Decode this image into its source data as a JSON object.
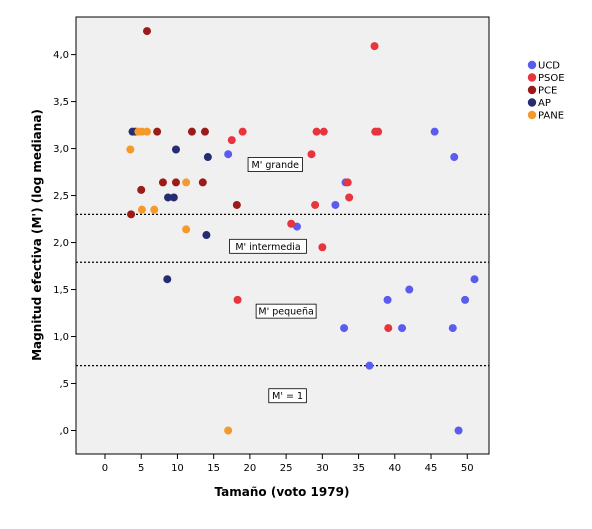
{
  "chart_data": {
    "type": "scatter",
    "title": "",
    "xlabel": "Tamaño (voto 1979)",
    "ylabel": "Magnitud efectiva (M') (log mediana)",
    "xlim": [
      -4,
      53
    ],
    "ylim": [
      -0.25,
      4.4
    ],
    "x_ticks": [
      0,
      5,
      10,
      15,
      20,
      25,
      30,
      35,
      40,
      45,
      50
    ],
    "x_tick_labels": [
      "0",
      "5",
      "10",
      "15",
      "20",
      "25",
      "30",
      "35",
      "40",
      "45",
      "50"
    ],
    "y_ticks": [
      0,
      0.5,
      1.0,
      1.5,
      2.0,
      2.5,
      3.0,
      3.5,
      4.0
    ],
    "y_tick_labels": [
      ",0",
      ",5",
      "1,0",
      "1,5",
      "2,0",
      "2,5",
      "3,0",
      "3,5",
      "4,0"
    ],
    "grid": false,
    "legend_position": "top-right",
    "series": [
      {
        "name": "UCD",
        "color": "#5b5bf0",
        "points": [
          [
            17,
            2.94
          ],
          [
            26.5,
            2.17
          ],
          [
            31.8,
            2.4
          ],
          [
            33.2,
            2.64
          ],
          [
            33,
            1.09
          ],
          [
            36.5,
            0.69
          ],
          [
            39,
            1.39
          ],
          [
            41,
            1.09
          ],
          [
            42,
            1.5
          ],
          [
            45.5,
            3.18
          ],
          [
            48.2,
            2.91
          ],
          [
            48,
            1.09
          ],
          [
            49.7,
            1.39
          ],
          [
            51,
            1.61
          ],
          [
            48.8,
            0
          ]
        ]
      },
      {
        "name": "PSOE",
        "color": "#e8343c",
        "points": [
          [
            17.5,
            3.09
          ],
          [
            18.3,
            1.39
          ],
          [
            19,
            3.18
          ],
          [
            25.7,
            2.2
          ],
          [
            28.5,
            2.94
          ],
          [
            29,
            2.4
          ],
          [
            29.2,
            3.18
          ],
          [
            30.2,
            3.18
          ],
          [
            30,
            1.95
          ],
          [
            33.5,
            2.64
          ],
          [
            33.7,
            2.48
          ],
          [
            37.2,
            4.09
          ],
          [
            37.3,
            3.18
          ],
          [
            37.7,
            3.18
          ],
          [
            39.1,
            1.09
          ]
        ]
      },
      {
        "name": "PCE",
        "color": "#9b1a1a",
        "points": [
          [
            5.8,
            4.25
          ],
          [
            4.2,
            3.18
          ],
          [
            7.2,
            3.18
          ],
          [
            12,
            3.18
          ],
          [
            13.8,
            3.18
          ],
          [
            5,
            2.56
          ],
          [
            8,
            2.64
          ],
          [
            9.8,
            2.64
          ],
          [
            13.5,
            2.64
          ],
          [
            18.2,
            2.4
          ],
          [
            3.6,
            2.3
          ]
        ]
      },
      {
        "name": "AP",
        "color": "#252c70",
        "points": [
          [
            3.8,
            3.18
          ],
          [
            9.8,
            2.99
          ],
          [
            14.2,
            2.91
          ],
          [
            8.7,
            2.48
          ],
          [
            9.5,
            2.48
          ],
          [
            14,
            2.08
          ],
          [
            8.6,
            1.61
          ]
        ]
      },
      {
        "name": "PANE",
        "color": "#f39a2a",
        "points": [
          [
            3.5,
            2.99
          ],
          [
            4.6,
            3.18
          ],
          [
            5.1,
            3.18
          ],
          [
            5.8,
            3.18
          ],
          [
            11.2,
            2.64
          ],
          [
            5.1,
            2.35
          ],
          [
            6.8,
            2.35
          ],
          [
            11.2,
            2.14
          ],
          [
            17,
            0
          ]
        ]
      }
    ],
    "reference_lines": [
      2.3,
      1.79,
      0.69
    ],
    "annotations": [
      {
        "text": "M' grande",
        "x": 23.5,
        "y": 2.83
      },
      {
        "text": "M' intermedia",
        "x": 22.5,
        "y": 1.96
      },
      {
        "text": "M' pequeña",
        "x": 25,
        "y": 1.27
      },
      {
        "text": "M' = 1",
        "x": 25.2,
        "y": 0.37
      }
    ]
  }
}
